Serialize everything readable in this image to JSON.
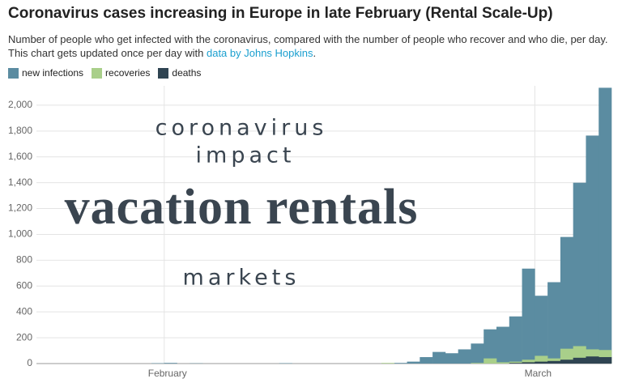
{
  "chart_data": {
    "type": "area-step",
    "title": "Coronavirus cases increasing in Europe in late February (Rental Scale-Up)",
    "subtitle_parts": [
      "Number of people who get infected with the coronavirus, compared with the number of people who recover and who die, per day. This chart gets updated once per day with ",
      "data by Johns Hopkins",
      "."
    ],
    "annotations": [
      "coronavirus",
      "impact",
      "vacation rentals",
      "markets"
    ],
    "categories": [
      null,
      null,
      null,
      null,
      null,
      null,
      null,
      null,
      null,
      null,
      "February",
      null,
      null,
      null,
      null,
      null,
      null,
      null,
      null,
      null,
      null,
      null,
      null,
      null,
      null,
      null,
      null,
      null,
      null,
      null,
      null,
      null,
      null,
      null,
      null,
      null,
      null,
      null,
      null,
      "March",
      null,
      null,
      null,
      null,
      null
    ],
    "series": [
      {
        "name": "new infections",
        "color": "#5b8ca1",
        "values": [
          0,
          0,
          0,
          0,
          0,
          0,
          0,
          0,
          0,
          3,
          5,
          0,
          2,
          0,
          0,
          0,
          0,
          0,
          0,
          3,
          0,
          0,
          0,
          0,
          0,
          0,
          0,
          2,
          5,
          15,
          50,
          90,
          80,
          110,
          155,
          265,
          285,
          365,
          735,
          525,
          630,
          980,
          1400,
          1765,
          2135
        ]
      },
      {
        "name": "recoveries",
        "color": "#a9cf8a",
        "values": [
          0,
          0,
          0,
          0,
          0,
          0,
          0,
          0,
          0,
          0,
          0,
          0,
          0,
          0,
          0,
          0,
          0,
          0,
          0,
          0,
          0,
          0,
          0,
          0,
          0,
          0,
          0,
          5,
          0,
          0,
          0,
          0,
          0,
          0,
          5,
          40,
          10,
          15,
          30,
          60,
          40,
          115,
          135,
          110,
          105
        ]
      },
      {
        "name": "deaths",
        "color": "#2f4452",
        "values": [
          0,
          0,
          0,
          0,
          0,
          0,
          0,
          0,
          0,
          0,
          0,
          0,
          0,
          0,
          0,
          0,
          0,
          0,
          0,
          0,
          0,
          0,
          0,
          0,
          0,
          0,
          0,
          0,
          0,
          0,
          0,
          0,
          0,
          0,
          0,
          0,
          0,
          5,
          10,
          15,
          20,
          30,
          45,
          55,
          50
        ]
      }
    ],
    "ylim": [
      0,
      2150
    ],
    "yticks": [
      0,
      200,
      400,
      600,
      800,
      {
        "value": 1000,
        "label": "1,000"
      },
      {
        "value": 1200,
        "label": "1,200"
      },
      {
        "value": 1400,
        "label": "1,400"
      },
      {
        "value": 1600,
        "label": "1,600"
      },
      {
        "value": 1800,
        "label": "1,800"
      },
      {
        "value": 2000,
        "label": "2,000"
      }
    ],
    "grid": true,
    "link_color": "#1a9fcf"
  }
}
